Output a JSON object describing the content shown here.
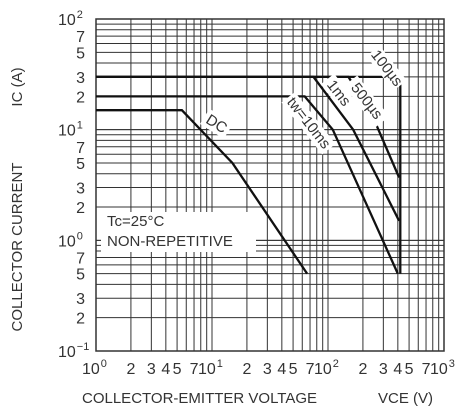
{
  "chart_data": {
    "type": "line",
    "xscale": "log",
    "yscale": "log",
    "xlim": [
      1,
      1000
    ],
    "ylim": [
      0.1,
      100
    ],
    "grid": true,
    "xlabel": "COLLECTOR-EMITTER VOLTAGE",
    "xlabel_symbol": "VCE (V)",
    "ylabel": "COLLECTOR CURRENT",
    "ylabel_symbol": "IC (A)",
    "x_major_ticks": [
      {
        "value": 1,
        "base": "10",
        "exp": "0"
      },
      {
        "value": 10,
        "base": "10",
        "exp": "1"
      },
      {
        "value": 100,
        "base": "10",
        "exp": "2"
      },
      {
        "value": 1000,
        "base": "10",
        "exp": "3"
      }
    ],
    "x_minor_ticks": [
      {
        "value": 2,
        "label": "2"
      },
      {
        "value": 3,
        "label": "3"
      },
      {
        "value": 4,
        "label": "4"
      },
      {
        "value": 5,
        "label": "5"
      },
      {
        "value": 7,
        "label": "7"
      },
      {
        "value": 20,
        "label": "2"
      },
      {
        "value": 30,
        "label": "3"
      },
      {
        "value": 40,
        "label": "4"
      },
      {
        "value": 50,
        "label": "5"
      },
      {
        "value": 70,
        "label": "7"
      },
      {
        "value": 200,
        "label": "2"
      },
      {
        "value": 300,
        "label": "3"
      },
      {
        "value": 400,
        "label": "4"
      },
      {
        "value": 500,
        "label": "5"
      },
      {
        "value": 700,
        "label": "7"
      }
    ],
    "y_major_ticks": [
      {
        "value": 0.1,
        "base": "10",
        "exp": "−1"
      },
      {
        "value": 1,
        "base": "10",
        "exp": "0"
      },
      {
        "value": 10,
        "base": "10",
        "exp": "1"
      },
      {
        "value": 100,
        "base": "10",
        "exp": "2"
      }
    ],
    "y_minor_ticks": [
      {
        "value": 0.2,
        "label": "2"
      },
      {
        "value": 0.3,
        "label": "3"
      },
      {
        "value": 0.5,
        "label": "5"
      },
      {
        "value": 0.7,
        "label": "7"
      },
      {
        "value": 2,
        "label": "2"
      },
      {
        "value": 3,
        "label": "3"
      },
      {
        "value": 5,
        "label": "5"
      },
      {
        "value": 7,
        "label": "7"
      },
      {
        "value": 20,
        "label": "2"
      },
      {
        "value": 30,
        "label": "3"
      },
      {
        "value": 50,
        "label": "5"
      },
      {
        "value": 70,
        "label": "7"
      }
    ],
    "series": [
      {
        "name": "DC",
        "points": [
          [
            1,
            15
          ],
          [
            5.5,
            15
          ],
          [
            15,
            5
          ],
          [
            66,
            0.5
          ]
        ]
      },
      {
        "name": "tw=10ms",
        "points": [
          [
            1,
            20
          ],
          [
            63,
            20
          ],
          [
            110,
            10
          ],
          [
            400,
            0.5
          ]
        ]
      },
      {
        "name": "1ms",
        "points": [
          [
            1,
            30
          ],
          [
            75,
            30
          ],
          [
            165,
            10
          ],
          [
            410,
            1.5
          ]
        ]
      },
      {
        "name": "500µs",
        "points": [
          [
            1,
            30
          ],
          [
            150,
            30
          ],
          [
            230,
            15
          ],
          [
            410,
            3.7
          ]
        ]
      },
      {
        "name": "100µs",
        "points": [
          [
            1,
            30
          ],
          [
            420,
            30
          ],
          [
            420,
            0.5
          ]
        ]
      }
    ],
    "annotations": [
      "Tc=25°C",
      "NON-REPETITIVE"
    ]
  }
}
